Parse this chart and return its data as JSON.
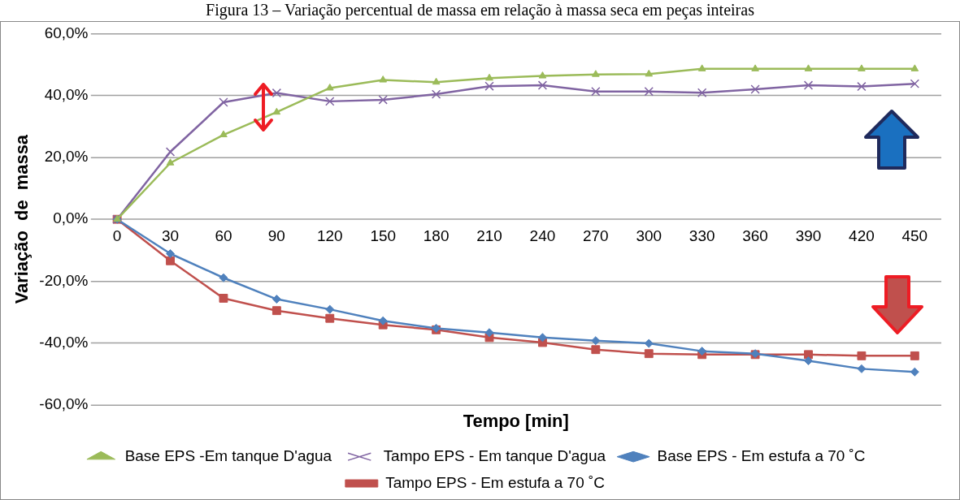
{
  "chart_data": {
    "type": "line",
    "title": "Figura 13 – Variação percentual de massa em relação à massa seca em peças inteiras",
    "xlabel": "Tempo [min]",
    "ylabel": "Variação  de  massa",
    "categories": [
      "0",
      "30",
      "60",
      "90",
      "120",
      "150",
      "180",
      "210",
      "240",
      "270",
      "300",
      "330",
      "360",
      "390",
      "420",
      "450"
    ],
    "ylim": [
      -60,
      60
    ],
    "yticks": [
      {
        "value": -60,
        "label": "-60,0%"
      },
      {
        "value": -40,
        "label": "-40,0%"
      },
      {
        "value": -20,
        "label": "-20,0%"
      },
      {
        "value": 0,
        "label": "0,0%"
      },
      {
        "value": 20,
        "label": "20,0%"
      },
      {
        "value": 40,
        "label": "40,0%"
      },
      {
        "value": 60,
        "label": "60,0%"
      }
    ],
    "grid": "y",
    "legend": "bottom",
    "line_style": "solid",
    "series": [
      {
        "name": "Base EPS -Em tanque D'agua",
        "color": "#9bbb59",
        "marker": "triangle",
        "values": [
          0,
          18.2,
          27.3,
          34.6,
          42.4,
          45,
          44.3,
          45.6,
          46.3,
          46.8,
          46.9,
          48.6,
          48.6,
          48.6,
          48.6,
          48.6
        ]
      },
      {
        "name": "Tampo EPS - Em tanque D'agua",
        "color": "#8064a2",
        "marker": "cross",
        "values": [
          0,
          21.8,
          37.8,
          40.8,
          38.1,
          38.6,
          40.4,
          43,
          43.3,
          41.3,
          41.3,
          40.9,
          42,
          43.3,
          42.9,
          43.8
        ]
      },
      {
        "name": "Base EPS - Em estufa a 70 ˚C",
        "color": "#4f81bd",
        "marker": "diamond",
        "values": [
          0,
          -11.1,
          -18.9,
          -25.8,
          -29.1,
          -32.8,
          -35.2,
          -36.6,
          -38.2,
          -39.2,
          -40.1,
          -42.6,
          -43.4,
          -45.7,
          -48.3,
          -49.3
        ]
      },
      {
        "name": "Tampo EPS - Em estufa a 70 ˚C",
        "color": "#c0504d",
        "marker": "square",
        "values": [
          0,
          -13.4,
          -25.5,
          -29.5,
          -32,
          -34.1,
          -35.7,
          -38.2,
          -39.8,
          -42.1,
          -43.4,
          -43.7,
          -43.7,
          -43.7,
          -44.1,
          -44.1
        ]
      }
    ]
  }
}
